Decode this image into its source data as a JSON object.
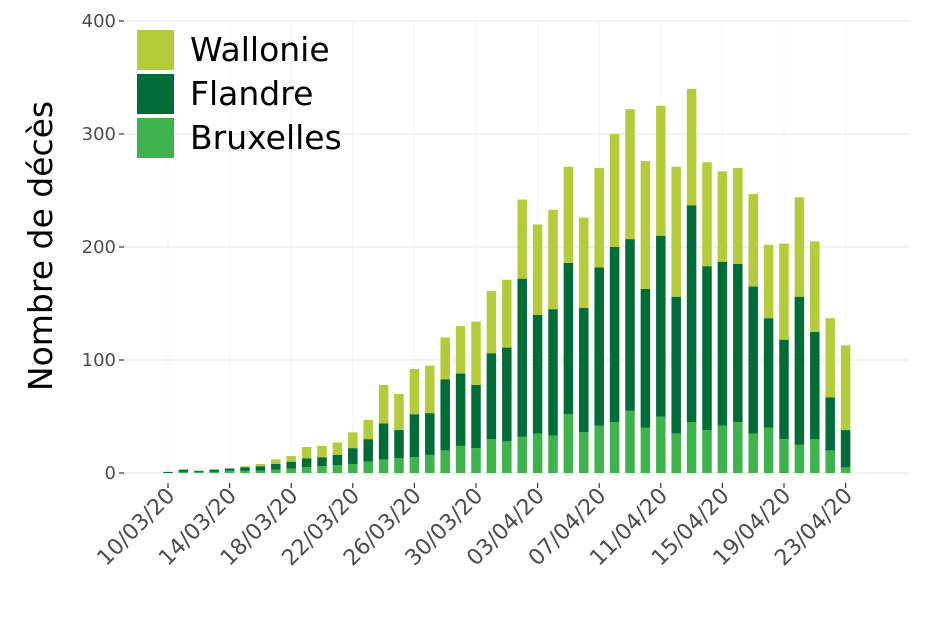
{
  "chart_data": {
    "type": "bar",
    "stacked": true,
    "ylabel": "Nombre de décès",
    "xlabel": "",
    "ylim": [
      0,
      400
    ],
    "yticks": [
      0,
      100,
      200,
      300,
      400
    ],
    "grid": true,
    "legend_position": "top-left",
    "dates": [
      "10/03/20",
      "11/03/20",
      "12/03/20",
      "13/03/20",
      "14/03/20",
      "15/03/20",
      "16/03/20",
      "17/03/20",
      "18/03/20",
      "19/03/20",
      "20/03/20",
      "21/03/20",
      "22/03/20",
      "23/03/20",
      "24/03/20",
      "25/03/20",
      "26/03/20",
      "27/03/20",
      "28/03/20",
      "29/03/20",
      "30/03/20",
      "31/03/20",
      "01/04/20",
      "02/04/20",
      "03/04/20",
      "04/04/20",
      "05/04/20",
      "06/04/20",
      "07/04/20",
      "08/04/20",
      "09/04/20",
      "10/04/20",
      "11/04/20",
      "12/04/20",
      "13/04/20",
      "14/04/20",
      "15/04/20",
      "16/04/20",
      "17/04/20",
      "18/04/20",
      "19/04/20",
      "20/04/20",
      "21/04/20",
      "22/04/20",
      "23/04/20"
    ],
    "tick_labels": [
      "10/03/20",
      "14/03/20",
      "18/03/20",
      "22/03/20",
      "26/03/20",
      "30/03/20",
      "03/04/20",
      "07/04/20",
      "11/04/20",
      "15/04/20",
      "19/04/20",
      "23/04/20"
    ],
    "series": [
      {
        "name": "Bruxelles",
        "color": "#3cb44b",
        "values": [
          0,
          1,
          1,
          1,
          2,
          2,
          2,
          3,
          4,
          5,
          6,
          7,
          8,
          10,
          12,
          13,
          14,
          16,
          20,
          24,
          22,
          30,
          28,
          32,
          35,
          33,
          52,
          36,
          42,
          45,
          55,
          40,
          50,
          35,
          45,
          38,
          42,
          45,
          35,
          40,
          30,
          25,
          30,
          20,
          5
        ]
      },
      {
        "name": "Flandre",
        "color": "#006d38",
        "values": [
          1,
          2,
          1,
          2,
          2,
          3,
          4,
          5,
          6,
          8,
          8,
          9,
          14,
          20,
          32,
          25,
          38,
          37,
          63,
          64,
          56,
          76,
          83,
          140,
          105,
          112,
          134,
          110,
          140,
          155,
          152,
          123,
          160,
          121,
          192,
          145,
          145,
          140,
          130,
          97,
          88,
          131,
          95,
          47,
          33
        ]
      },
      {
        "name": "Wallonie",
        "color": "#b5cc3a",
        "values": [
          0,
          0,
          0,
          0,
          0,
          1,
          2,
          4,
          5,
          10,
          10,
          11,
          14,
          17,
          34,
          32,
          40,
          42,
          37,
          42,
          56,
          55,
          60,
          70,
          80,
          88,
          85,
          80,
          88,
          100,
          115,
          113,
          115,
          115,
          103,
          92,
          80,
          85,
          82,
          65,
          85,
          88,
          80,
          70,
          75
        ]
      }
    ]
  }
}
